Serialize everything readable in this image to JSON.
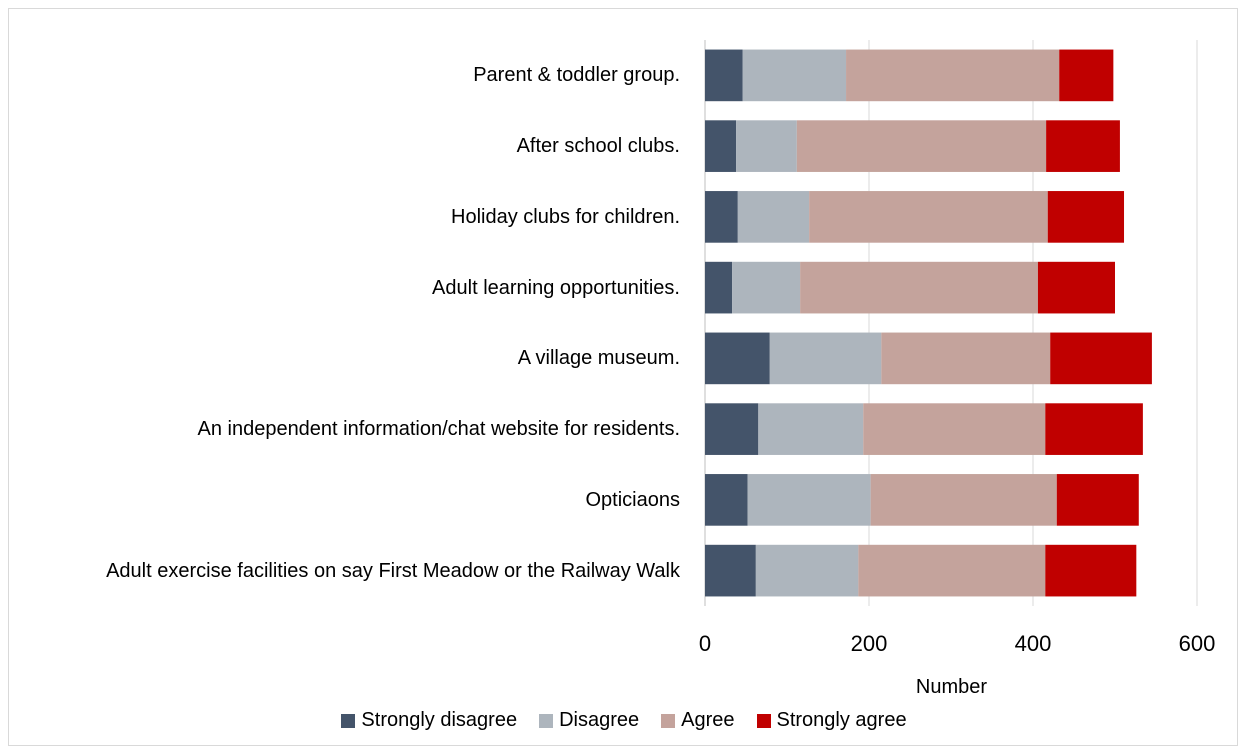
{
  "chart_data": {
    "type": "stacked-barh",
    "categories": [
      "Parent & toddler group.",
      "After school clubs.",
      "Holiday clubs for children.",
      "Adult learning opportunities.",
      "A village museum.",
      "An independent information/chat website for residents.",
      "Opticiaons",
      "Adult exercise facilities on say First Meadow or the Railway Walk"
    ],
    "series": [
      {
        "name": "Strongly disagree",
        "color": "#44546a",
        "values": [
          46,
          38,
          40,
          33,
          79,
          65,
          52,
          62
        ]
      },
      {
        "name": "Disagree",
        "color": "#adb5bd",
        "values": [
          126,
          74,
          87,
          83,
          136,
          128,
          150,
          125
        ]
      },
      {
        "name": "Agree",
        "color": "#c4a39c",
        "values": [
          260,
          304,
          291,
          290,
          206,
          222,
          227,
          228
        ]
      },
      {
        "name": "Strongly agree",
        "color": "#c00000",
        "values": [
          66,
          90,
          93,
          94,
          124,
          119,
          100,
          111
        ]
      }
    ],
    "xlabel": "Number",
    "xlim": [
      0,
      600
    ],
    "xticks": [
      0,
      200,
      400,
      600
    ],
    "grid": true,
    "legend": "bottom"
  }
}
